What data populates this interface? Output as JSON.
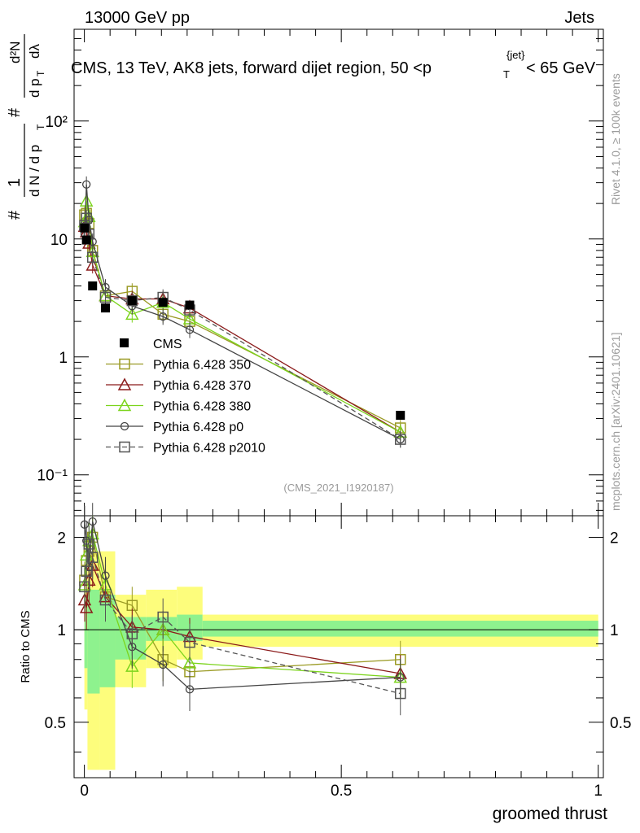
{
  "header": {
    "left": "13000 GeV pp",
    "right": "Jets"
  },
  "side_text": {
    "rivet": "Rivet 4.1.0, ≥ 100k events",
    "mcplots": "mcplots.cern.ch [arXiv:2401.10621]"
  },
  "chart_data": {
    "type": "line",
    "title": "CMS, 13 TeV, AK8 jets, forward dijet region, 50 <p_T^{jet}< 65 GeV",
    "title_parts": {
      "main": "CMS, 13 TeV, AK8 jets, forward dijet region, 50 <p",
      "sub": "T",
      "sup": "{jet}",
      "tail": "< 65 GeV"
    },
    "watermark": "(CMS_2021_I1920187)",
    "xlabel": "groomed thrust",
    "ylabel_main": "1/dN/dp_T  d²N/dp_T dλ",
    "ylabel_parts": {
      "hash1": "#",
      "one": "1",
      "dN": "d N / d p",
      "T": "T",
      "hash2": "#",
      "d2N": "d²N",
      "dpT": "d p",
      "dlam": "dλ"
    },
    "ylabel_ratio": "Ratio to CMS",
    "xlim": [
      -0.02,
      1.01
    ],
    "ylim_main": [
      0.045,
      600
    ],
    "ylim_ratio": [
      0.33,
      2.35
    ],
    "x_ticks": [
      "0",
      "0.5",
      "1"
    ],
    "y_ticks_main": [
      "10⁻¹",
      "1",
      "10",
      "10²"
    ],
    "y_ticks_ratio": [
      "0.5",
      "1",
      "2"
    ],
    "data": {
      "name": "CMS",
      "x": [
        0.0005,
        0.004,
        0.016,
        0.041,
        0.093,
        0.153,
        0.205,
        0.615
      ],
      "y": [
        12.4,
        9.8,
        4.0,
        2.6,
        3.0,
        2.9,
        2.75,
        0.32
      ]
    },
    "ratio_bands": [
      {
        "x0": 0.0,
        "x1": 0.006,
        "inner": [
          0.75,
          1.3
        ],
        "outer": [
          0.55,
          1.55
        ]
      },
      {
        "x0": 0.006,
        "x1": 0.03,
        "inner": [
          0.62,
          1.35
        ],
        "outer": [
          0.35,
          1.8
        ]
      },
      {
        "x0": 0.03,
        "x1": 0.06,
        "inner": [
          0.65,
          1.3
        ],
        "outer": [
          0.35,
          1.8
        ]
      },
      {
        "x0": 0.06,
        "x1": 0.12,
        "inner": [
          0.8,
          1.1
        ],
        "outer": [
          0.65,
          1.3
        ]
      },
      {
        "x0": 0.12,
        "x1": 0.18,
        "inner": [
          0.92,
          1.1
        ],
        "outer": [
          0.75,
          1.35
        ]
      },
      {
        "x0": 0.18,
        "x1": 0.23,
        "inner": [
          0.92,
          1.12
        ],
        "outer": [
          0.8,
          1.38
        ]
      },
      {
        "x0": 0.23,
        "x1": 1.0,
        "inner": [
          0.95,
          1.07
        ],
        "outer": [
          0.88,
          1.12
        ]
      }
    ],
    "legend": [
      "CMS",
      "Pythia 6.428 350",
      "Pythia 6.428 370",
      "Pythia 6.428 380",
      "Pythia 6.428 p0",
      "Pythia 6.428 p2010"
    ],
    "series": [
      {
        "name": "Pythia 6.428 350",
        "color": "#9b9b25",
        "marker": "square",
        "dash": "",
        "x": [
          0.0005,
          0.004,
          0.009,
          0.016,
          0.041,
          0.093,
          0.153,
          0.205,
          0.615
        ],
        "y": [
          16.0,
          16.5,
          13.5,
          8.0,
          3.3,
          3.6,
          2.3,
          2.0,
          0.25
        ],
        "ratio": [
          1.45,
          1.68,
          1.8,
          2.0,
          1.28,
          1.2,
          0.8,
          0.73,
          0.8
        ]
      },
      {
        "name": "Pythia 6.428 370",
        "color": "#8b1a1a",
        "marker": "triangle",
        "dash": "",
        "x": [
          0.0005,
          0.004,
          0.009,
          0.016,
          0.041,
          0.093,
          0.153,
          0.205,
          0.615
        ],
        "y": [
          12.8,
          11.5,
          9.2,
          6.0,
          3.3,
          3.1,
          3.1,
          2.6,
          0.23
        ],
        "ratio": [
          1.25,
          1.18,
          1.45,
          1.62,
          1.28,
          1.02,
          1.0,
          0.95,
          0.72
        ]
      },
      {
        "name": "Pythia 6.428 380",
        "color": "#7cd41d",
        "marker": "triangle",
        "dash": "",
        "x": [
          0.0005,
          0.004,
          0.009,
          0.016,
          0.041,
          0.093,
          0.153,
          0.205,
          0.615
        ],
        "y": [
          14.0,
          21.0,
          15.5,
          7.8,
          3.3,
          2.3,
          2.9,
          2.1,
          0.23
        ],
        "ratio": [
          1.4,
          1.75,
          1.95,
          2.05,
          1.4,
          0.76,
          1.0,
          0.78,
          0.7
        ]
      },
      {
        "name": "Pythia 6.428 p0",
        "color": "#444444",
        "marker": "circle",
        "dash": "",
        "x": [
          0.0005,
          0.004,
          0.009,
          0.016,
          0.041,
          0.093,
          0.153,
          0.205,
          0.615
        ],
        "y": [
          11.0,
          29.0,
          14.5,
          9.5,
          3.9,
          2.7,
          2.2,
          1.7,
          0.2
        ],
        "ratio": [
          2.2,
          1.95,
          1.6,
          2.25,
          1.5,
          0.88,
          0.77,
          0.64,
          0.7
        ]
      },
      {
        "name": "Pythia 6.428 p2010",
        "color": "#555555",
        "marker": "square",
        "dash": "6,4",
        "x": [
          0.0005,
          0.004,
          0.009,
          0.016,
          0.041,
          0.093,
          0.153,
          0.205,
          0.615
        ],
        "y": [
          13.0,
          15.0,
          11.0,
          7.0,
          3.2,
          3.0,
          3.2,
          2.5,
          0.2
        ],
        "ratio": [
          1.38,
          1.55,
          1.9,
          1.72,
          1.25,
          0.97,
          1.1,
          0.91,
          0.62
        ]
      }
    ]
  }
}
